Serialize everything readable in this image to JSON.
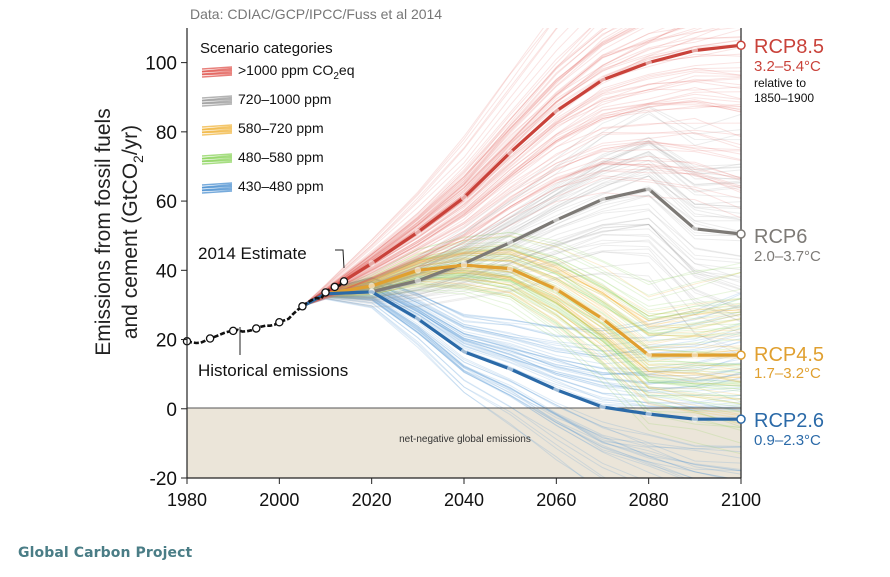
{
  "source_note": "Data: CDIAC/GCP/IPCC/Fuss et al 2014",
  "footer": "Global Carbon Project",
  "chart_data": {
    "type": "line",
    "title": "",
    "ylabel_line1": "Emissions from fossil fuels",
    "ylabel_line2_pre": "and cement (GtCO",
    "ylabel_line2_sub": "2",
    "ylabel_line2_post": "/yr)",
    "xlabel": "",
    "xlim": [
      1980,
      2100
    ],
    "ylim": [
      -20,
      110
    ],
    "x_ticks": [
      1980,
      2000,
      2020,
      2040,
      2060,
      2080,
      2100
    ],
    "y_ticks": [
      -20,
      0,
      20,
      40,
      60,
      80,
      100
    ],
    "grid": false,
    "legend_title": "Scenario categories",
    "legend_position": "top-left",
    "legend": [
      {
        "label_pre": ">1000 ppm CO",
        "label_sub": "2",
        "label_post": "eq",
        "color": "#e0564f"
      },
      {
        "label_pre": "720–1000 ppm",
        "label_sub": "",
        "label_post": "",
        "color": "#9b9b9b"
      },
      {
        "label_pre": "580–720 ppm",
        "label_sub": "",
        "label_post": "",
        "color": "#f0b43c"
      },
      {
        "label_pre": "480–580 ppm",
        "label_sub": "",
        "label_post": "",
        "color": "#8ad35a"
      },
      {
        "label_pre": "430–480 ppm",
        "label_sub": "",
        "label_post": "",
        "color": "#4a8fd0"
      }
    ],
    "historical": {
      "x": [
        1980,
        1981,
        1982,
        1983,
        1984,
        1985,
        1986,
        1987,
        1988,
        1989,
        1990,
        1991,
        1992,
        1993,
        1994,
        1995,
        1996,
        1997,
        1998,
        1999,
        2000,
        2001,
        2002,
        2003,
        2004,
        2005,
        2006,
        2007,
        2008,
        2009,
        2010,
        2011,
        2012,
        2013,
        2014
      ],
      "y": [
        19.5,
        19.2,
        19.0,
        19.1,
        19.7,
        20.3,
        20.8,
        21.3,
        21.9,
        22.3,
        22.5,
        22.8,
        22.3,
        22.4,
        22.7,
        23.2,
        23.7,
        24.0,
        24.0,
        24.3,
        25.0,
        25.5,
        26.0,
        27.4,
        28.6,
        29.6,
        30.6,
        31.4,
        32.0,
        31.8,
        33.6,
        34.6,
        35.2,
        35.6,
        36.8
      ],
      "marker_x": [
        1980,
        1985,
        1990,
        1995,
        2000,
        2005,
        2010,
        2012,
        2014
      ],
      "marker_y": [
        19.5,
        20.3,
        22.5,
        23.2,
        25.0,
        29.6,
        33.6,
        35.2,
        36.8
      ]
    },
    "rcp_series": [
      {
        "name": "RCP8.5",
        "range": "3.2–5.4°C",
        "note1": "relative to",
        "note2": "1850–1900",
        "color": "#c9423a",
        "x": [
          2005,
          2010,
          2020,
          2030,
          2040,
          2050,
          2060,
          2070,
          2080,
          2090,
          2100
        ],
        "y": [
          29.6,
          33.6,
          42,
          51,
          61,
          74,
          86,
          95,
          100,
          103.5,
          105
        ]
      },
      {
        "name": "RCP6",
        "range": "2.0–3.7°C",
        "color": "#7d7a76",
        "x": [
          2005,
          2010,
          2020,
          2030,
          2040,
          2050,
          2060,
          2070,
          2080,
          2090,
          2100
        ],
        "y": [
          29.6,
          33.2,
          33.8,
          37,
          42,
          48,
          54.5,
          60.5,
          63.5,
          52,
          50.5
        ]
      },
      {
        "name": "RCP4.5",
        "range": "1.7–3.2°C",
        "color": "#e0a030",
        "x": [
          2005,
          2010,
          2020,
          2030,
          2040,
          2050,
          2060,
          2070,
          2080,
          2090,
          2100
        ],
        "y": [
          29.6,
          33.2,
          35.5,
          40,
          41.5,
          40.5,
          34.5,
          26,
          15.5,
          15.5,
          15.5
        ]
      },
      {
        "name": "RCP2.6",
        "range": "0.9–2.3°C",
        "color": "#2b6aa8",
        "x": [
          2005,
          2010,
          2020,
          2030,
          2040,
          2050,
          2060,
          2070,
          2080,
          2090,
          2100
        ],
        "y": [
          29.6,
          33.2,
          33.8,
          26,
          16.5,
          11.5,
          5.5,
          0.5,
          -1.5,
          -3,
          -3
        ]
      }
    ],
    "annotations": {
      "estimate": "2014 Estimate",
      "historical": "Historical emissions",
      "net_negative": "net-negative global emissions"
    }
  }
}
